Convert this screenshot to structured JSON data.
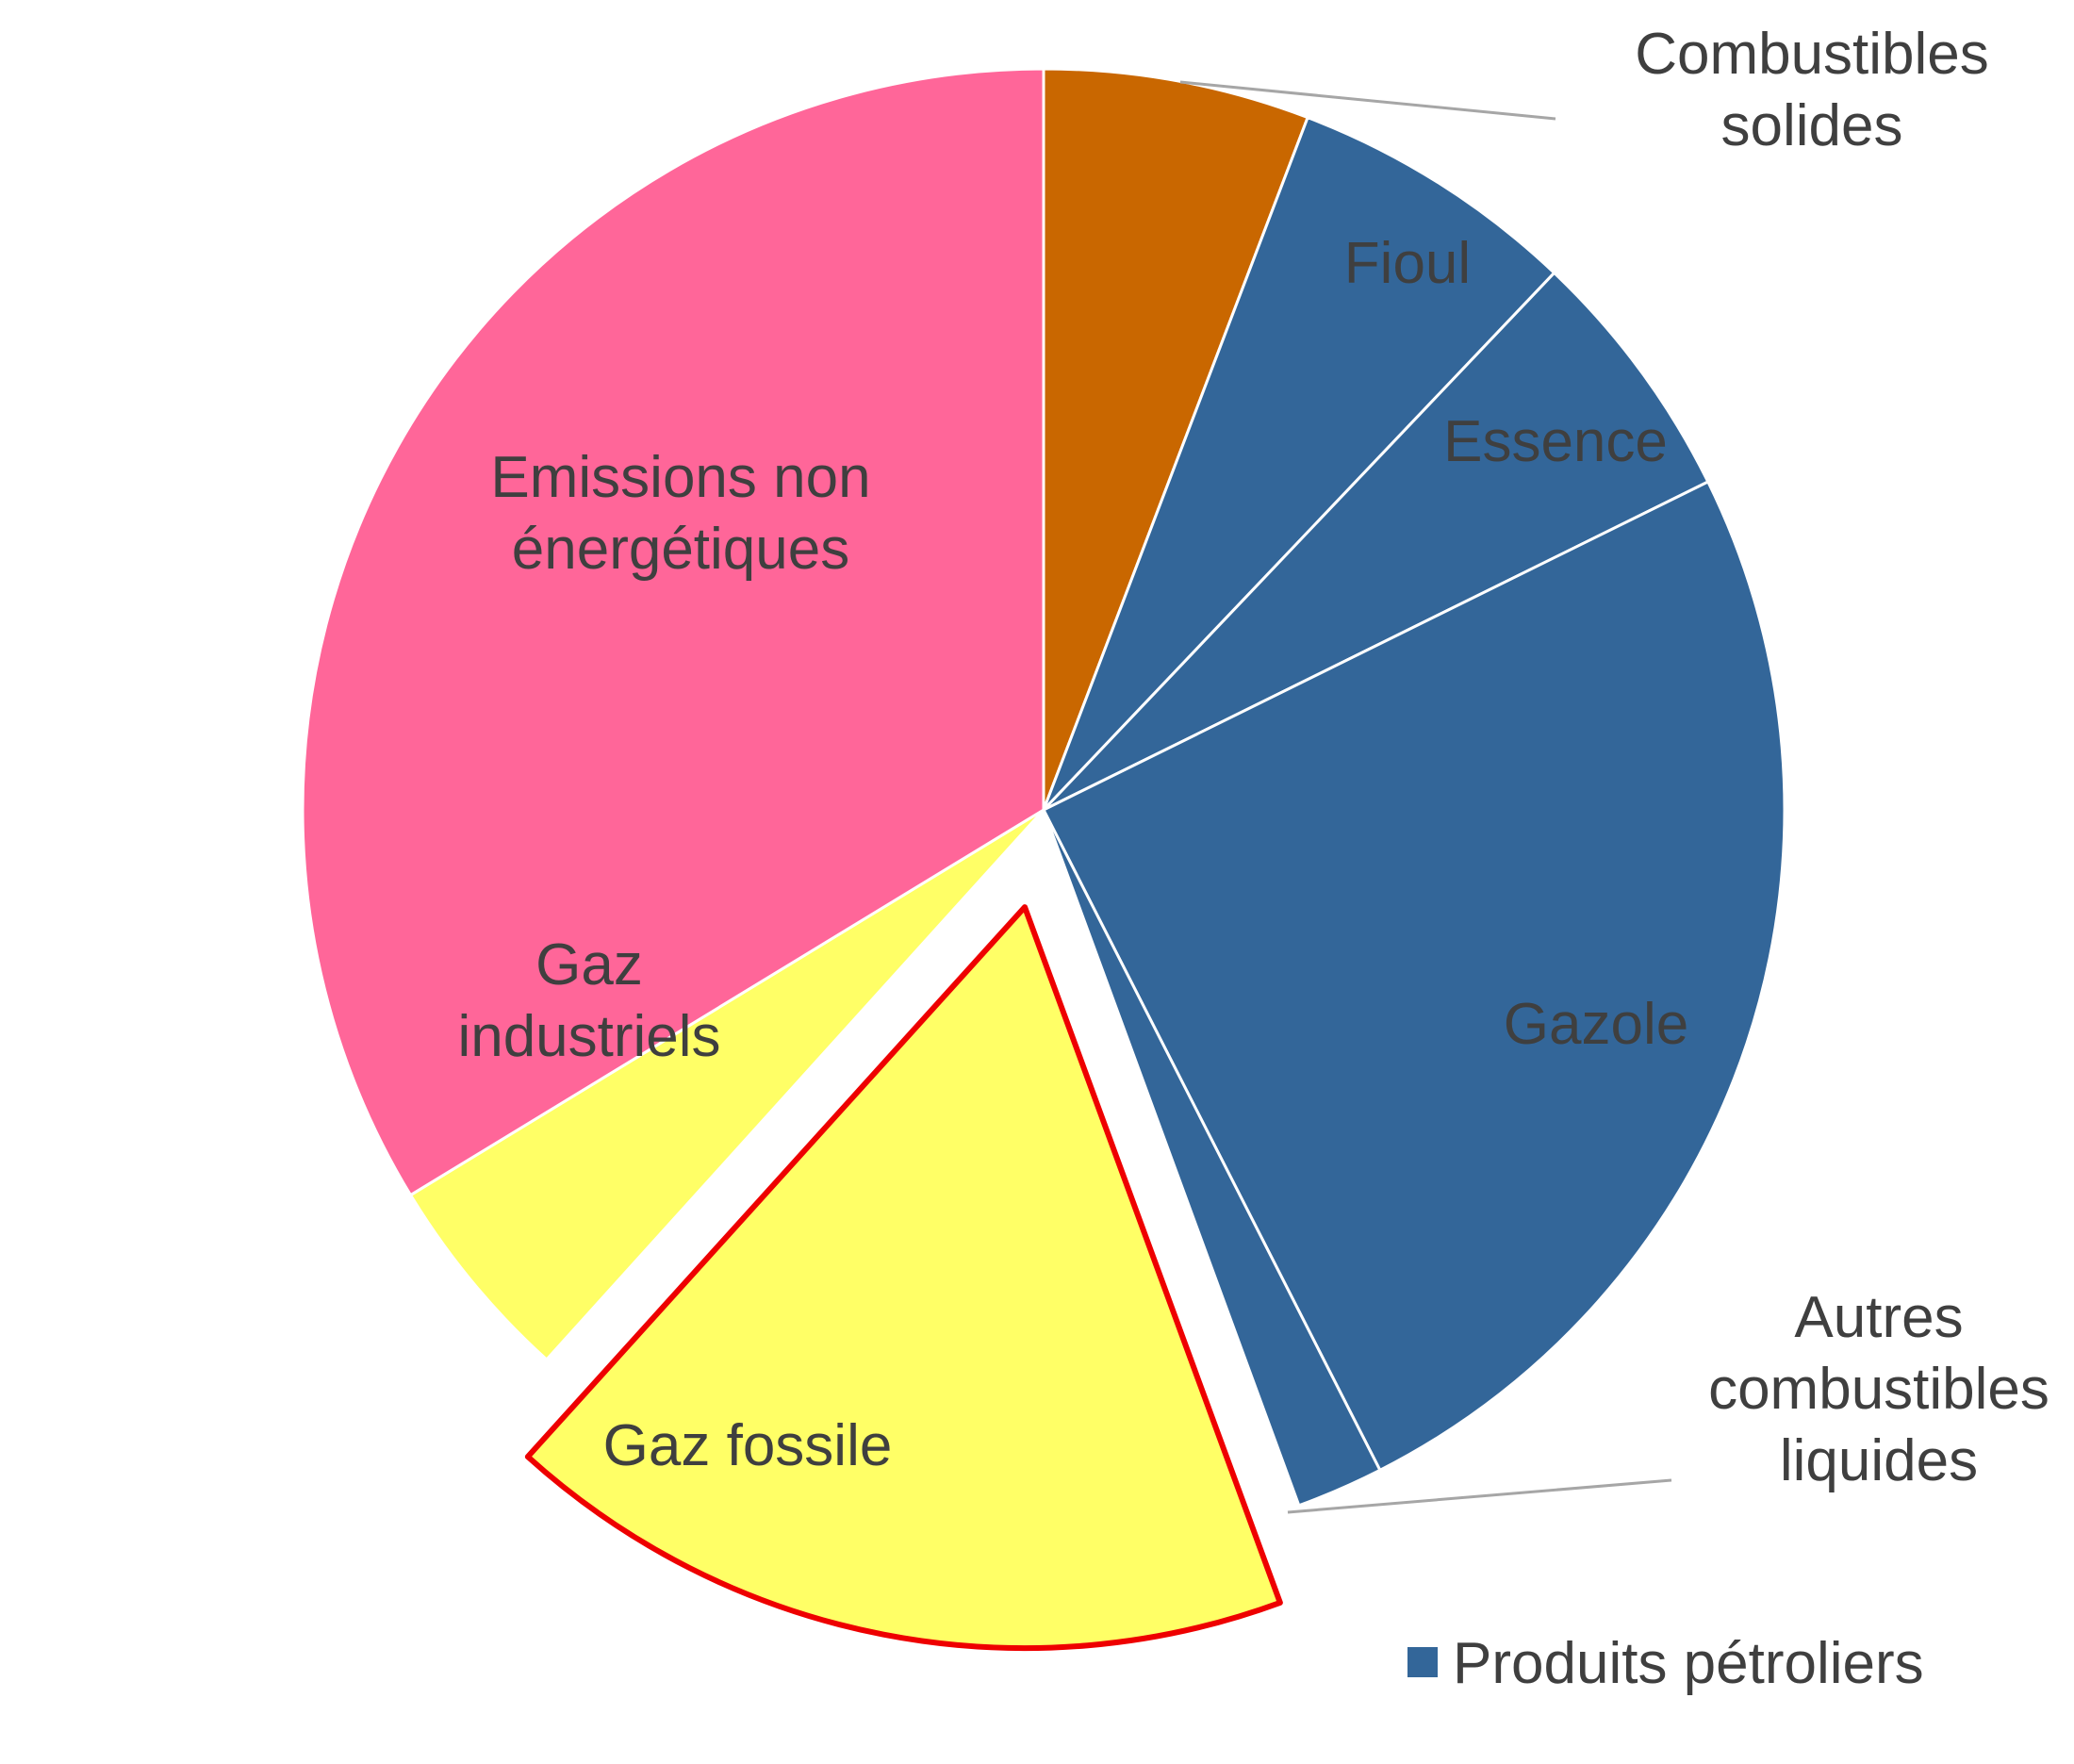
{
  "chart_data": {
    "type": "pie",
    "start_angle_deg": 0,
    "direction": "clockwise",
    "slices": [
      {
        "key": "combustibles_solides",
        "label": "Combustibles solides",
        "lines": [
          "Combustibles",
          "solides"
        ],
        "value": 5.8,
        "color": "#c96700",
        "exploded": false,
        "label_style": "leader"
      },
      {
        "key": "fioul",
        "label": "Fioul",
        "lines": [
          "Fioul"
        ],
        "value": 6.3,
        "color": "#336699",
        "exploded": false,
        "label_style": "inside"
      },
      {
        "key": "essence",
        "label": "Essence",
        "lines": [
          "Essence"
        ],
        "value": 5.6,
        "color": "#336699",
        "exploded": false,
        "label_style": "inside"
      },
      {
        "key": "gazole",
        "label": "Gazole",
        "lines": [
          "Gazole"
        ],
        "value": 24.8,
        "color": "#336699",
        "exploded": false,
        "label_style": "inside"
      },
      {
        "key": "autres_combustibles_liquides",
        "label": "Autres combustibles liquides",
        "lines": [
          "Autres",
          "combustibles",
          "liquides"
        ],
        "value": 1.9,
        "color": "#336699",
        "exploded": false,
        "label_style": "leader"
      },
      {
        "key": "gaz_fossile",
        "label": "Gaz fossile",
        "lines": [
          "Gaz fossile"
        ],
        "value": 17.3,
        "color": "#ffff66",
        "exploded": true,
        "outline": "#ee0000",
        "label_style": "inside"
      },
      {
        "key": "gaz_industriels",
        "label": "Gaz industriels",
        "lines": [
          "Gaz",
          "industriels"
        ],
        "value": 4.6,
        "color": "#ffff66",
        "exploded": false,
        "label_style": "inside"
      },
      {
        "key": "emissions_non_energetiques",
        "label": "Emissions non énergétiques",
        "lines": [
          "Emissions non",
          "énergétiques"
        ],
        "value": 33.7,
        "color": "#ff6699",
        "exploded": false,
        "label_style": "inside"
      }
    ],
    "legend": {
      "position": "bottom-right",
      "entries": [
        {
          "label": "Produits pétroliers",
          "color": "#336699"
        }
      ]
    }
  }
}
